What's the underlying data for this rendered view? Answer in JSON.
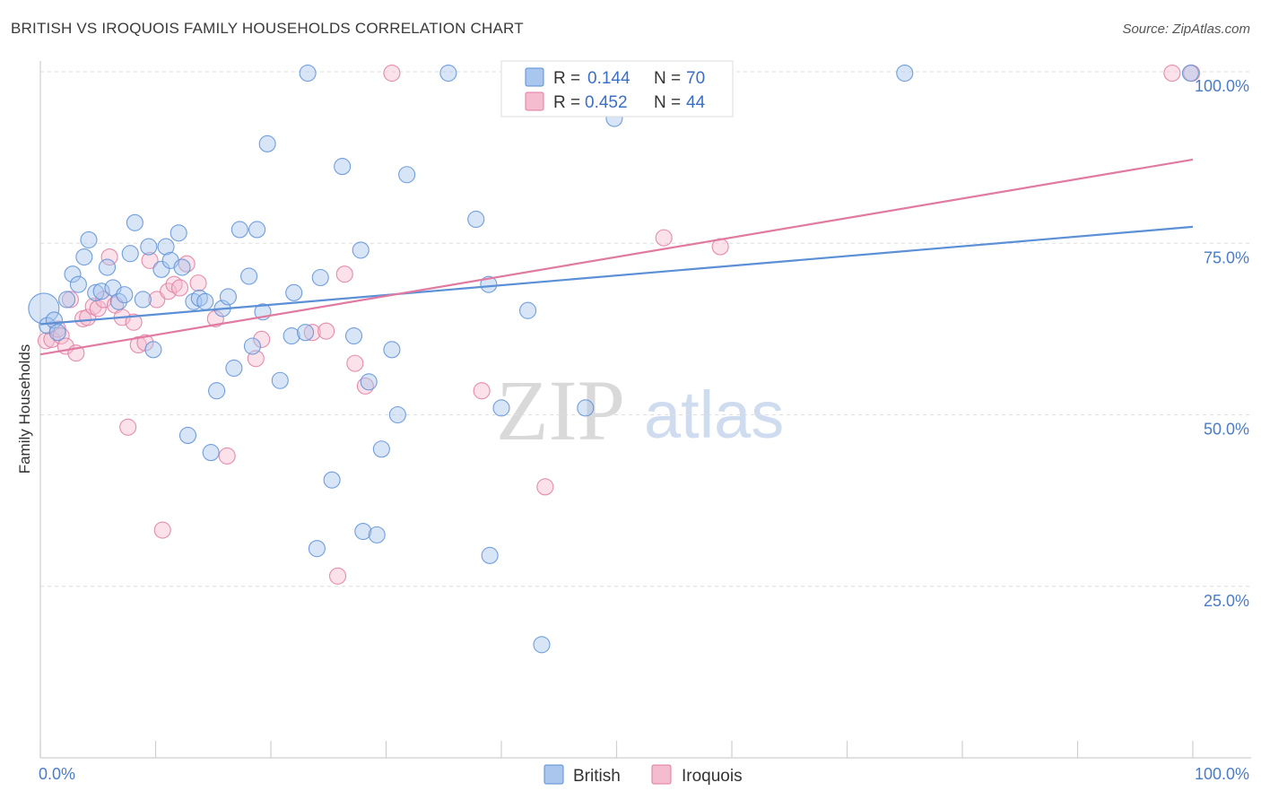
{
  "title": "BRITISH VS IROQUOIS FAMILY HOUSEHOLDS CORRELATION CHART",
  "source": "Source: ZipAtlas.com",
  "colors": {
    "british": "#5b8fd6",
    "british_fill": "#a9c6ee",
    "iroquois": "#e07aa0",
    "iroquois_fill": "#f5bcd0",
    "tick": "#4a7cc8"
  },
  "legend": {
    "british": {
      "r_label": "R =",
      "r_value": "0.144",
      "n_label": "N =",
      "n_value": "70"
    },
    "iroquois": {
      "r_label": "R =",
      "r_value": "0.452",
      "n_label": "N =",
      "n_value": "44"
    }
  },
  "watermark": {
    "zip": "ZIP",
    "atlas": "atlas"
  },
  "chart_data": {
    "type": "scatter",
    "title": "BRITISH VS IROQUOIS FAMILY HOUSEHOLDS CORRELATION CHART",
    "xlabel": "",
    "ylabel": "Family Households",
    "xlim": [
      0,
      100
    ],
    "ylim": [
      0,
      104
    ],
    "x_tick_labels": [
      "0.0%",
      "100.0%"
    ],
    "y_ticks": [
      25,
      50,
      75,
      100
    ],
    "y_tick_labels": [
      "25.0%",
      "50.0%",
      "75.0%",
      "100.0%"
    ],
    "grid": true,
    "legend_placement": "top-center",
    "series": [
      {
        "name": "British",
        "trend": {
          "x": [
            0,
            100
          ],
          "y": [
            63.2,
            77.4
          ]
        },
        "points": [
          [
            0.3,
            65.5
          ],
          [
            0.6,
            63.0
          ],
          [
            1.2,
            63.8
          ],
          [
            1.5,
            62.0
          ],
          [
            2.3,
            66.8
          ],
          [
            2.8,
            70.5
          ],
          [
            3.3,
            69.0
          ],
          [
            3.8,
            73.0
          ],
          [
            4.2,
            75.5
          ],
          [
            4.8,
            67.8
          ],
          [
            5.3,
            68.0
          ],
          [
            5.8,
            71.5
          ],
          [
            6.3,
            68.5
          ],
          [
            6.8,
            66.5
          ],
          [
            7.3,
            67.5
          ],
          [
            7.8,
            73.5
          ],
          [
            8.2,
            78.0
          ],
          [
            8.9,
            66.8
          ],
          [
            9.4,
            74.5
          ],
          [
            9.8,
            59.5
          ],
          [
            10.5,
            71.2
          ],
          [
            10.9,
            74.5
          ],
          [
            11.3,
            72.5
          ],
          [
            12.0,
            76.5
          ],
          [
            12.3,
            71.5
          ],
          [
            12.8,
            47.0
          ],
          [
            13.3,
            66.5
          ],
          [
            13.8,
            67.0
          ],
          [
            14.3,
            66.5
          ],
          [
            14.8,
            44.5
          ],
          [
            15.3,
            53.5
          ],
          [
            15.8,
            65.5
          ],
          [
            16.3,
            67.2
          ],
          [
            16.8,
            56.8
          ],
          [
            17.3,
            77.0
          ],
          [
            18.1,
            70.2
          ],
          [
            18.4,
            60.0
          ],
          [
            18.8,
            77.0
          ],
          [
            19.3,
            65.0
          ],
          [
            19.7,
            89.5
          ],
          [
            20.8,
            55.0
          ],
          [
            22.0,
            67.8
          ],
          [
            21.8,
            61.5
          ],
          [
            23.0,
            62.0
          ],
          [
            23.2,
            99.8
          ],
          [
            24.0,
            30.5
          ],
          [
            24.3,
            70.0
          ],
          [
            25.3,
            40.5
          ],
          [
            26.2,
            86.2
          ],
          [
            27.2,
            61.5
          ],
          [
            27.8,
            74.0
          ],
          [
            28.0,
            33.0
          ],
          [
            28.5,
            54.8
          ],
          [
            29.2,
            32.5
          ],
          [
            29.6,
            45.0
          ],
          [
            30.5,
            59.5
          ],
          [
            31.0,
            50.0
          ],
          [
            31.8,
            85.0
          ],
          [
            35.4,
            99.8
          ],
          [
            37.8,
            78.5
          ],
          [
            38.9,
            69.0
          ],
          [
            39.0,
            29.5
          ],
          [
            40.0,
            51.0
          ],
          [
            42.3,
            65.2
          ],
          [
            43.5,
            16.5
          ],
          [
            47.3,
            51.0
          ],
          [
            49.5,
            99.8
          ],
          [
            49.8,
            93.2
          ],
          [
            75.0,
            99.8
          ],
          [
            99.8,
            99.8
          ]
        ]
      },
      {
        "name": "Iroquois",
        "trend": {
          "x": [
            0,
            100
          ],
          "y": [
            58.8,
            87.2
          ]
        },
        "points": [
          [
            0.5,
            60.8
          ],
          [
            1.0,
            61.0
          ],
          [
            1.5,
            62.5
          ],
          [
            1.8,
            61.5
          ],
          [
            2.2,
            60.0
          ],
          [
            2.6,
            66.8
          ],
          [
            3.1,
            59.0
          ],
          [
            3.7,
            64.0
          ],
          [
            4.1,
            64.2
          ],
          [
            4.6,
            65.8
          ],
          [
            5.0,
            65.5
          ],
          [
            5.5,
            66.8
          ],
          [
            6.0,
            73.0
          ],
          [
            6.5,
            66.0
          ],
          [
            7.1,
            64.2
          ],
          [
            7.6,
            48.2
          ],
          [
            8.1,
            63.5
          ],
          [
            8.5,
            60.2
          ],
          [
            9.1,
            60.5
          ],
          [
            9.5,
            72.5
          ],
          [
            10.1,
            66.8
          ],
          [
            10.6,
            33.2
          ],
          [
            11.1,
            68.0
          ],
          [
            11.6,
            69.0
          ],
          [
            12.1,
            68.5
          ],
          [
            12.7,
            72.0
          ],
          [
            13.7,
            69.2
          ],
          [
            15.2,
            64.0
          ],
          [
            16.2,
            44.0
          ],
          [
            18.7,
            58.2
          ],
          [
            19.2,
            61.0
          ],
          [
            23.6,
            62.0
          ],
          [
            24.8,
            62.2
          ],
          [
            25.8,
            26.5
          ],
          [
            26.4,
            70.5
          ],
          [
            27.3,
            57.5
          ],
          [
            28.2,
            54.2
          ],
          [
            30.5,
            99.8
          ],
          [
            38.3,
            53.5
          ],
          [
            43.8,
            39.5
          ],
          [
            54.1,
            75.8
          ],
          [
            59.0,
            74.5
          ],
          [
            98.2,
            99.8
          ],
          [
            99.9,
            99.8
          ]
        ]
      }
    ]
  }
}
